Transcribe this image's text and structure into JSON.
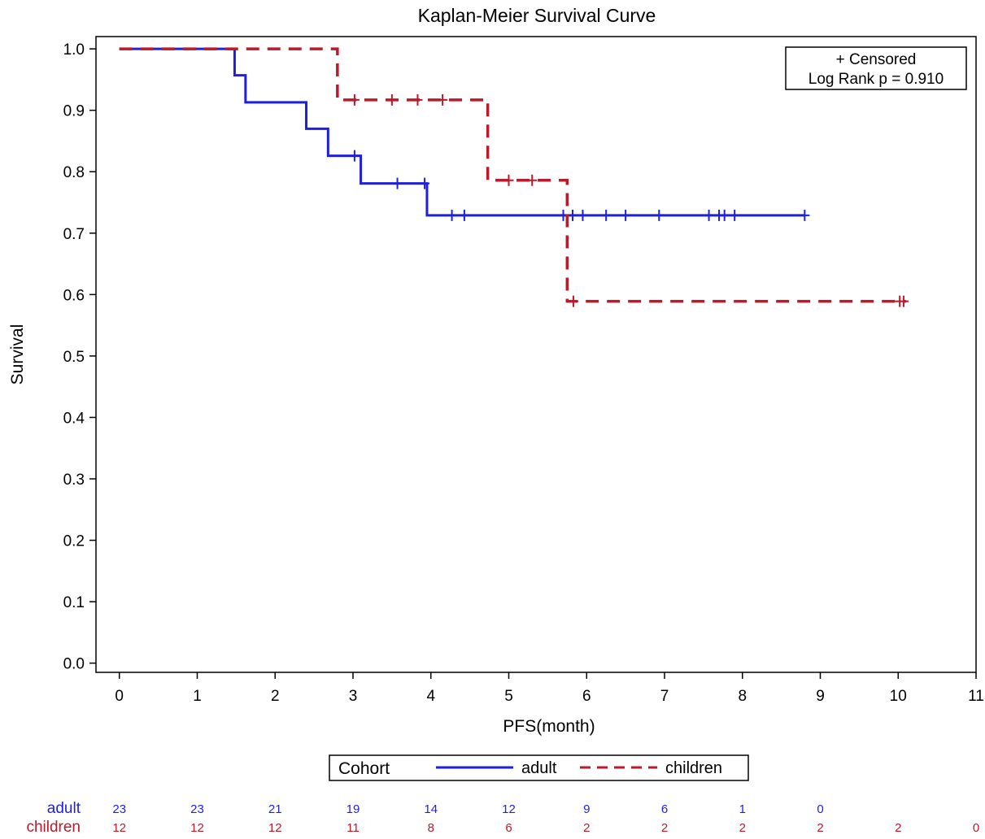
{
  "chart_data": {
    "type": "line",
    "title": "Kaplan-Meier Survival Curve",
    "xlabel": "PFS(month)",
    "ylabel": "Survival",
    "xlim": [
      -0.3,
      11
    ],
    "ylim": [
      -0.015,
      1.02
    ],
    "x_ticks": [
      "0",
      "1",
      "2",
      "3",
      "4",
      "5",
      "6",
      "7",
      "8",
      "9",
      "10",
      "11"
    ],
    "y_ticks": [
      "0.0",
      "0.1",
      "0.2",
      "0.3",
      "0.4",
      "0.5",
      "0.6",
      "0.7",
      "0.8",
      "0.9",
      "1.0"
    ],
    "grid": false,
    "annotation": {
      "line1": "+ Censored",
      "line2": "Log Rank p =  0.910"
    },
    "legend": {
      "position": "bottom",
      "title": "Cohort"
    },
    "series": [
      {
        "name": "adult",
        "color": "#1f1fe0",
        "style": "solid",
        "steps": [
          [
            0,
            1.0
          ],
          [
            1.48,
            0.957
          ],
          [
            1.62,
            0.913
          ],
          [
            2.4,
            0.87
          ],
          [
            2.68,
            0.826
          ],
          [
            3.1,
            0.781
          ],
          [
            3.95,
            0.729
          ],
          [
            8.8,
            0.729
          ]
        ],
        "censored": [
          [
            3.02,
            0.826
          ],
          [
            3.57,
            0.781
          ],
          [
            3.92,
            0.781
          ],
          [
            4.27,
            0.729
          ],
          [
            4.43,
            0.729
          ],
          [
            5.7,
            0.729
          ],
          [
            5.82,
            0.729
          ],
          [
            5.95,
            0.729
          ],
          [
            6.25,
            0.729
          ],
          [
            6.5,
            0.729
          ],
          [
            6.93,
            0.729
          ],
          [
            7.57,
            0.729
          ],
          [
            7.7,
            0.729
          ],
          [
            7.77,
            0.729
          ],
          [
            7.9,
            0.729
          ],
          [
            8.8,
            0.729
          ]
        ]
      },
      {
        "name": "children",
        "color": "#bb1a2a",
        "style": "dashed",
        "steps": [
          [
            0,
            1.0
          ],
          [
            2.8,
            0.917
          ],
          [
            4.73,
            0.786
          ],
          [
            5.75,
            0.589
          ],
          [
            10.1,
            0.589
          ]
        ],
        "censored": [
          [
            3.02,
            0.917
          ],
          [
            3.5,
            0.917
          ],
          [
            3.83,
            0.917
          ],
          [
            4.15,
            0.917
          ],
          [
            5.0,
            0.786
          ],
          [
            5.3,
            0.786
          ],
          [
            5.83,
            0.589
          ],
          [
            10.02,
            0.589
          ],
          [
            10.07,
            0.589
          ]
        ]
      }
    ],
    "at_risk": {
      "times": [
        0,
        1,
        2,
        3,
        4,
        5,
        6,
        7,
        8,
        9,
        10,
        11
      ],
      "rows": [
        {
          "label": "adult",
          "color": "#1f1fe0",
          "values": [
            "23",
            "23",
            "21",
            "19",
            "14",
            "12",
            "9",
            "6",
            "1",
            "0",
            "",
            ""
          ]
        },
        {
          "label": "children",
          "color": "#bb1a2a",
          "values": [
            "12",
            "12",
            "12",
            "11",
            "8",
            "6",
            "2",
            "2",
            "2",
            "2",
            "2",
            "0"
          ]
        }
      ]
    }
  }
}
